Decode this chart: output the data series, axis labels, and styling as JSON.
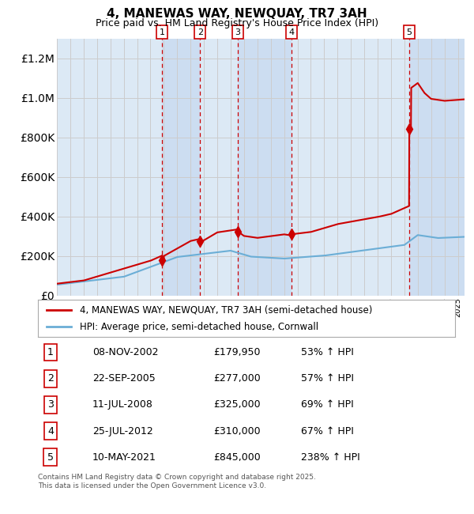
{
  "title": "4, MANEWAS WAY, NEWQUAY, TR7 3AH",
  "subtitle": "Price paid vs. HM Land Registry's House Price Index (HPI)",
  "footer": "Contains HM Land Registry data © Crown copyright and database right 2025.\nThis data is licensed under the Open Government Licence v3.0.",
  "legend_line1": "4, MANEWAS WAY, NEWQUAY, TR7 3AH (semi-detached house)",
  "legend_line2": "HPI: Average price, semi-detached house, Cornwall",
  "transactions": [
    {
      "num": 1,
      "date": "08-NOV-2002",
      "year": 2002.86,
      "price": 179950,
      "pct": "53%",
      "dir": "↑"
    },
    {
      "num": 2,
      "date": "22-SEP-2005",
      "year": 2005.72,
      "price": 277000,
      "pct": "57%",
      "dir": "↑"
    },
    {
      "num": 3,
      "date": "11-JUL-2008",
      "year": 2008.53,
      "price": 325000,
      "pct": "69%",
      "dir": "↑"
    },
    {
      "num": 4,
      "date": "25-JUL-2012",
      "year": 2012.56,
      "price": 310000,
      "pct": "67%",
      "dir": "↑"
    },
    {
      "num": 5,
      "date": "10-MAY-2021",
      "year": 2021.36,
      "price": 845000,
      "pct": "238%",
      "dir": "↑"
    }
  ],
  "hpi_color": "#6baed6",
  "price_color": "#cc0000",
  "bg_color": "#ffffff",
  "chart_bg": "#dce9f5",
  "grid_color": "#cccccc",
  "highlight_color": "#c6d9f0",
  "dashed_color": "#cc0000",
  "ylim_max": 1300000,
  "xmin": 1995.0,
  "xmax": 2025.5
}
